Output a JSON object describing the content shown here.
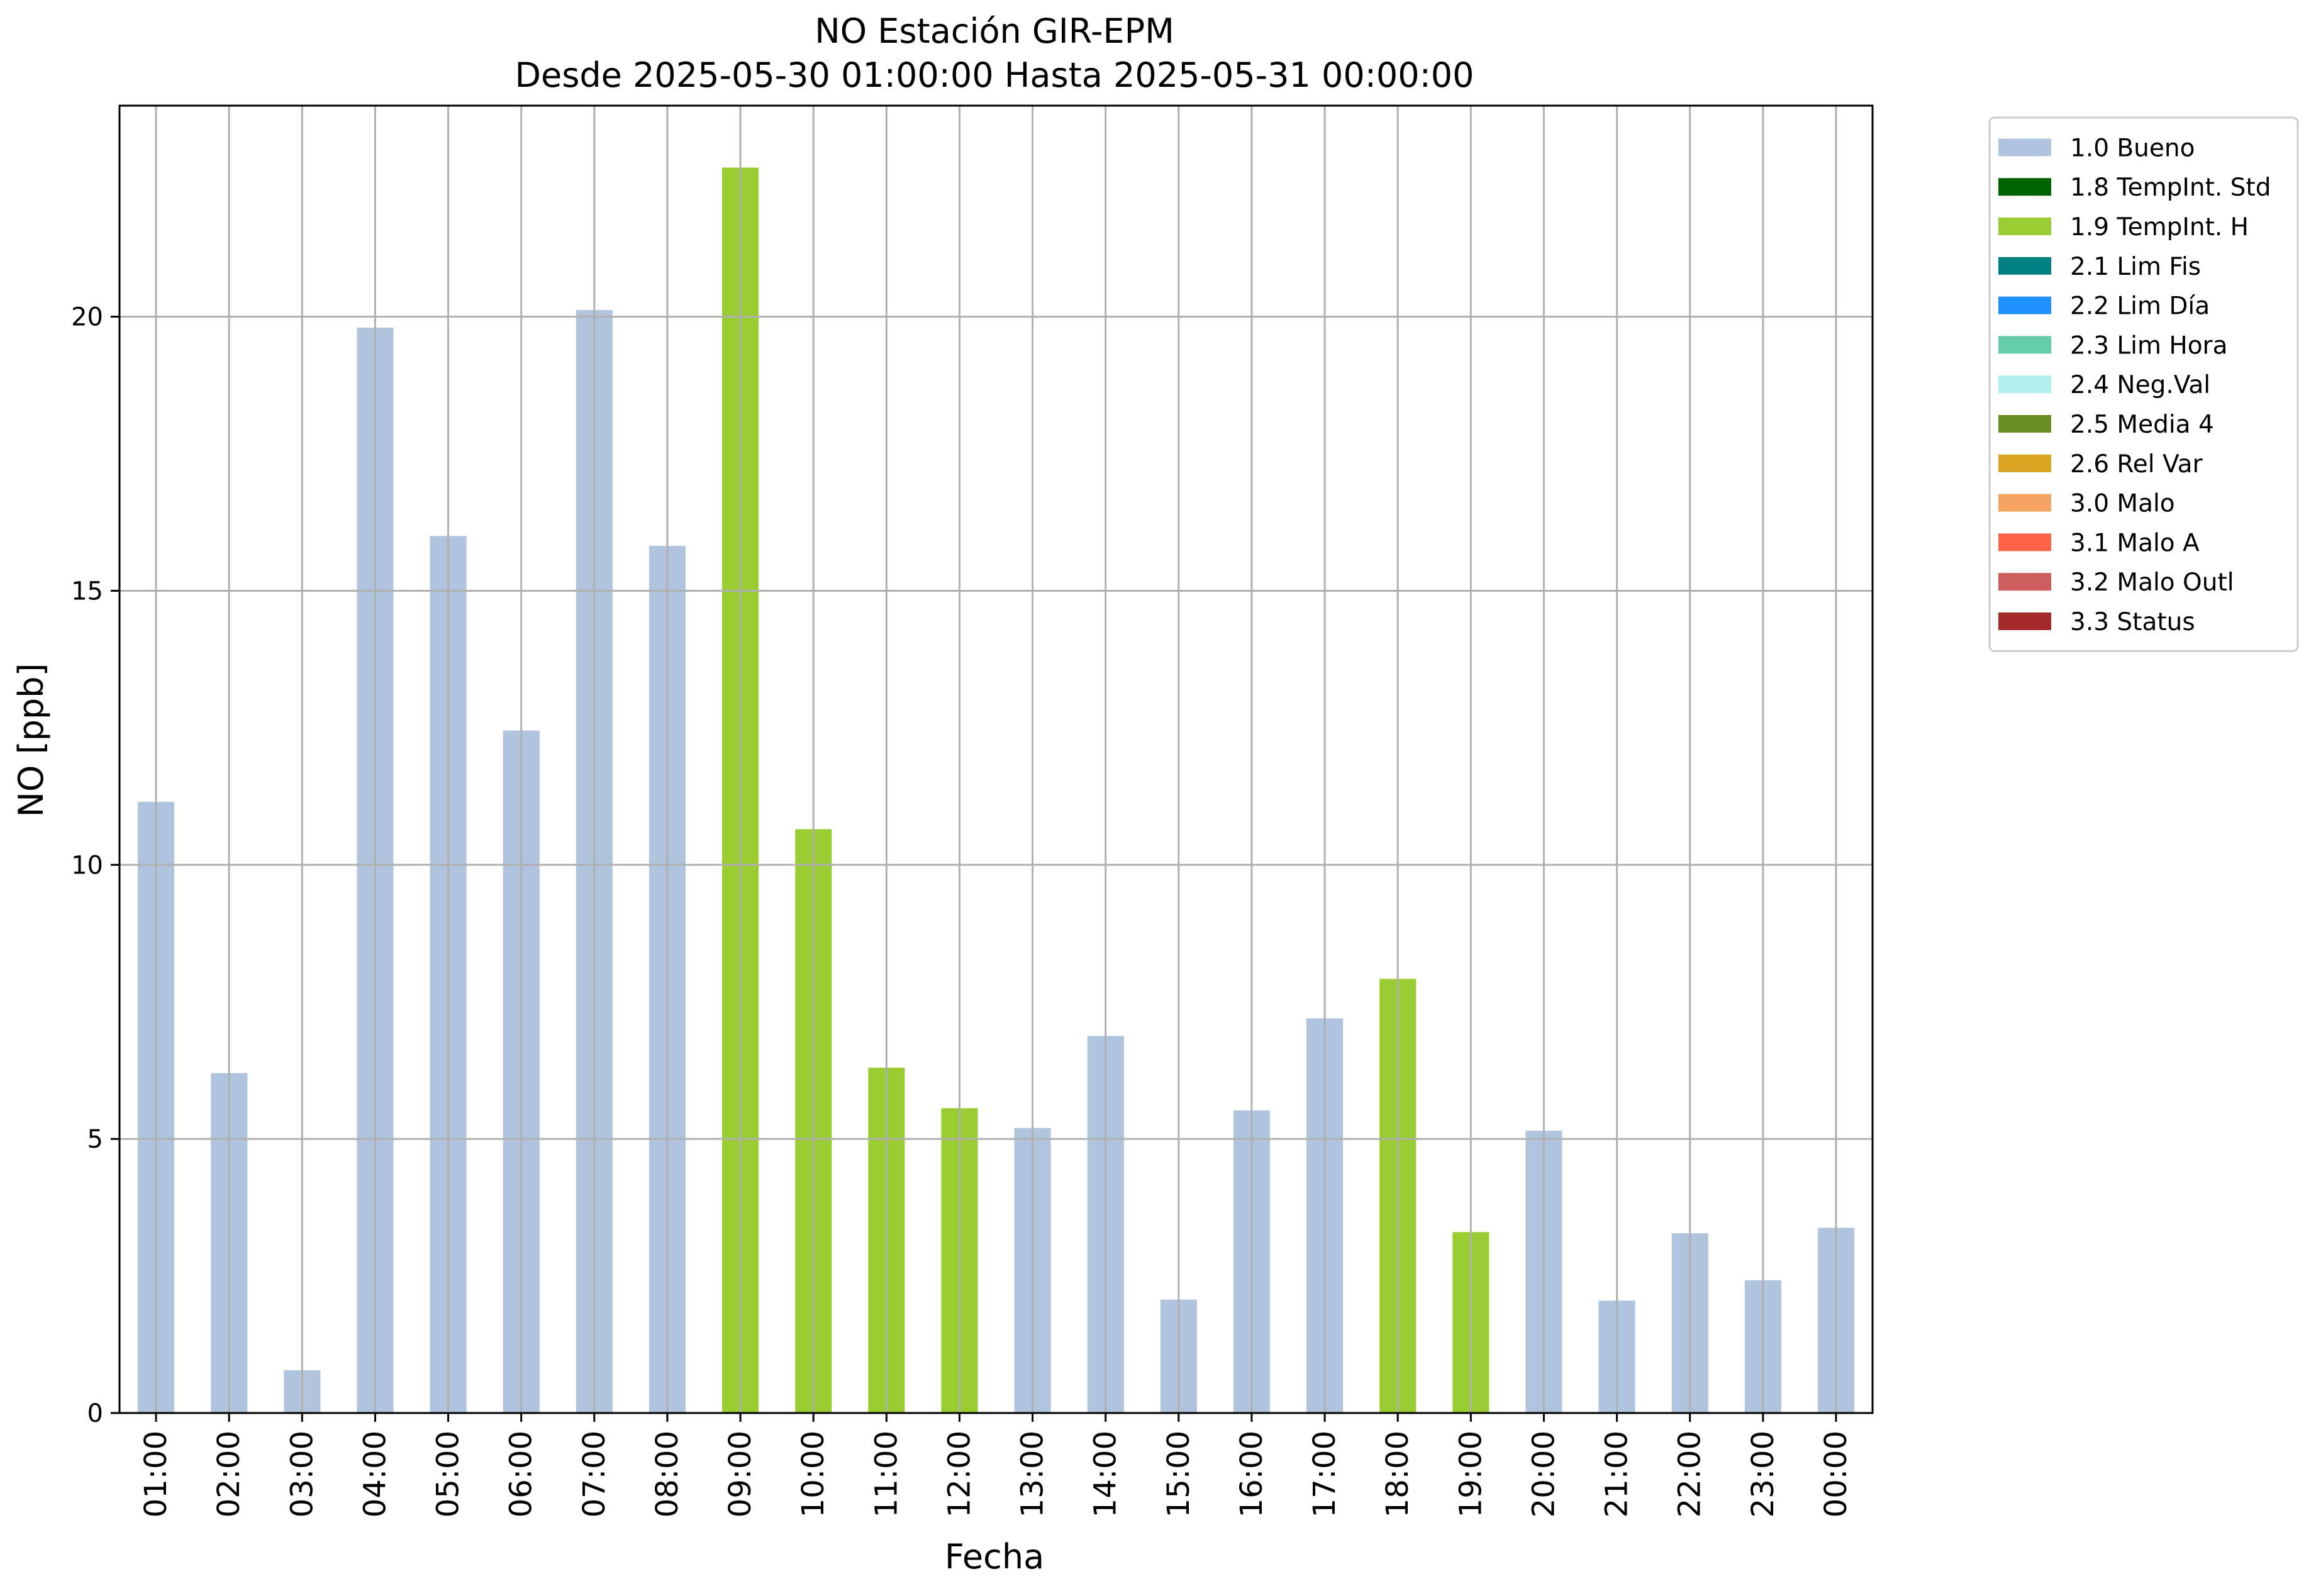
{
  "chart_data": {
    "type": "bar",
    "title_line1": "NO Estación GIR-EPM",
    "title_line2": "Desde 2025-05-30 01:00:00 Hasta 2025-05-31 00:00:00",
    "xlabel": "Fecha",
    "ylabel": "NO [ppb]",
    "ylim": [
      0,
      23.85
    ],
    "yticks": [
      0,
      5,
      10,
      15,
      20
    ],
    "grid": true,
    "legend_position": "outside-top-right",
    "categories": [
      "01:00",
      "02:00",
      "03:00",
      "04:00",
      "05:00",
      "06:00",
      "07:00",
      "08:00",
      "09:00",
      "10:00",
      "11:00",
      "12:00",
      "13:00",
      "14:00",
      "15:00",
      "16:00",
      "17:00",
      "18:00",
      "19:00",
      "20:00",
      "21:00",
      "22:00",
      "23:00",
      "00:00"
    ],
    "values": [
      11.15,
      6.2,
      0.78,
      19.8,
      16.0,
      12.45,
      20.12,
      15.82,
      22.72,
      10.65,
      6.3,
      5.56,
      5.2,
      6.88,
      2.07,
      5.52,
      7.2,
      7.92,
      3.3,
      5.15,
      2.05,
      3.28,
      2.42,
      3.38
    ],
    "flags": [
      "1.0",
      "1.0",
      "1.0",
      "1.0",
      "1.0",
      "1.0",
      "1.0",
      "1.0",
      "1.9",
      "1.9",
      "1.9",
      "1.9",
      "1.0",
      "1.0",
      "1.0",
      "1.0",
      "1.0",
      "1.9",
      "1.9",
      "1.0",
      "1.0",
      "1.0",
      "1.0",
      "1.0"
    ],
    "legend": [
      {
        "code": "1.0",
        "label": "1.0 Bueno",
        "color": "#b0c4de"
      },
      {
        "code": "1.8",
        "label": "1.8 TempInt. Std",
        "color": "#006400"
      },
      {
        "code": "1.9",
        "label": "1.9 TempInt. H",
        "color": "#9acd32"
      },
      {
        "code": "2.1",
        "label": "2.1 Lim Fis",
        "color": "#008080"
      },
      {
        "code": "2.2",
        "label": "2.2 Lim Día",
        "color": "#1e90ff"
      },
      {
        "code": "2.3",
        "label": "2.3 Lim Hora",
        "color": "#66cdaa"
      },
      {
        "code": "2.4",
        "label": "2.4 Neg.Val",
        "color": "#afeeee"
      },
      {
        "code": "2.5",
        "label": "2.5 Media 4",
        "color": "#6b8e23"
      },
      {
        "code": "2.6",
        "label": "2.6 Rel Var",
        "color": "#daa520"
      },
      {
        "code": "3.0",
        "label": "3.0 Malo",
        "color": "#f4a460"
      },
      {
        "code": "3.1",
        "label": "3.1 Malo A",
        "color": "#ff6347"
      },
      {
        "code": "3.2",
        "label": "3.2 Malo Outl",
        "color": "#cd5c5c"
      },
      {
        "code": "3.3",
        "label": "3.3 Status",
        "color": "#a52a2a"
      }
    ]
  }
}
